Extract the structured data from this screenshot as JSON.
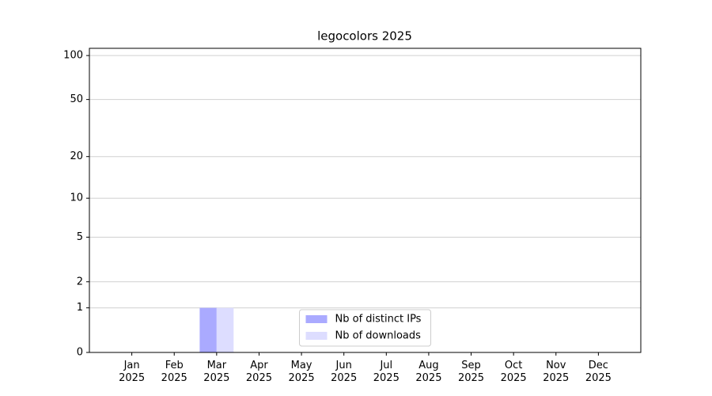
{
  "chart_data": {
    "type": "bar",
    "title": "legocolors 2025",
    "categories": [
      "Jan\n2025",
      "Feb\n2025",
      "Mar\n2025",
      "Apr\n2025",
      "May\n2025",
      "Jun\n2025",
      "Jul\n2025",
      "Aug\n2025",
      "Sep\n2025",
      "Oct\n2025",
      "Nov\n2025",
      "Dec\n2025"
    ],
    "series": [
      {
        "name": "Nb of distinct IPs",
        "color": "#aaaaff",
        "values": [
          0,
          0,
          1,
          0,
          0,
          0,
          0,
          0,
          0,
          0,
          0,
          0
        ]
      },
      {
        "name": "Nb of downloads",
        "color": "#ddddff",
        "values": [
          0,
          0,
          1,
          0,
          0,
          0,
          0,
          0,
          0,
          0,
          0,
          0
        ]
      }
    ],
    "yscale": "log1p",
    "ylim": [
      0,
      112
    ],
    "yticks": [
      0,
      1,
      2,
      5,
      10,
      20,
      50,
      100
    ],
    "grid": true,
    "legend": "lower center"
  }
}
